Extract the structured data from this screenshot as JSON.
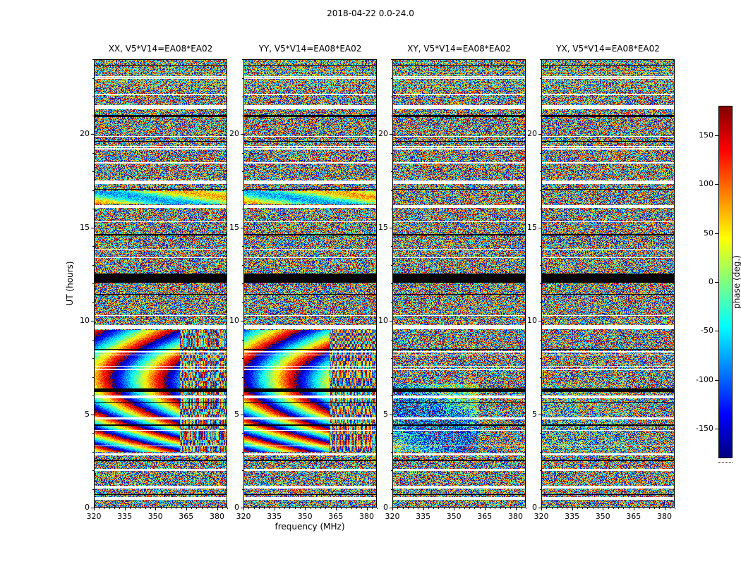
{
  "figure": {
    "title": "2018-04-22 0.0-24.0",
    "xlabel": "frequency (MHz)",
    "ylabel": "UT (hours)",
    "background_color": "#ffffff"
  },
  "chart_data": {
    "type": "heatmap",
    "title": "2018-04-22 0.0-24.0",
    "xlabel": "frequency (MHz)",
    "ylabel": "UT (hours)",
    "colormap": "jet",
    "grid": false,
    "x_range_mhz": [
      320,
      385
    ],
    "x_ticks": [
      320,
      335,
      350,
      365,
      380
    ],
    "y_range_hours": [
      0,
      24
    ],
    "y_ticks": [
      0,
      5,
      10,
      15,
      20
    ],
    "colorbar": {
      "label": "phase (deg.)",
      "min_deg": -180,
      "max_deg": 180,
      "ticks": [
        150,
        100,
        50,
        0,
        -50,
        -100,
        -150
      ],
      "orientation": "vertical",
      "position": "right"
    },
    "panels": [
      {
        "id": "xx",
        "title": "XX, V5*V14=EA08*EA02",
        "kind": "parallel",
        "phase_shift_cycles": 0,
        "description": "Coherent rainbow phase-wrapping fringes between UT 3.0-9.5 below ~362 MHz; scrambled fringes above 362 MHz; smooth green band near UT 16.25-16.95; random phase noise elsewhere"
      },
      {
        "id": "yy",
        "title": "YY, V5*V14=EA08*EA02",
        "kind": "parallel",
        "phase_shift_cycles": 0.35,
        "description": "Same coherent fringe structure as XX with a small phase offset"
      },
      {
        "id": "xy",
        "title": "XY, V5*V14=EA08*EA02",
        "kind": "cross_weak",
        "phase_shift_cycles": 0,
        "description": "Mostly noise-like phase; weak smooth cyan-blue structure between UT 3.0-6.6"
      },
      {
        "id": "yx",
        "title": "YX, V5*V14=EA08*EA02",
        "kind": "cross_noise",
        "phase_shift_cycles": 0,
        "description": "Mostly noise-like phase; very weak coherent structure between UT 3.0-6.6"
      }
    ],
    "features": {
      "coherent_band_ut_parallel": [
        3.0,
        9.5
      ],
      "coherent_band_ut_cross": [
        3.0,
        6.6
      ],
      "green_band_ut": [
        16.25,
        16.95
      ],
      "scrambled_above_mhz": 362,
      "moire_band_ut": [
        22.35,
        24.0
      ],
      "white_gap_rows_ut": [
        [
          0.42,
          0.56
        ],
        [
          1.02,
          1.16
        ],
        [
          1.98,
          2.08
        ],
        [
          2.78,
          2.92
        ],
        [
          4.72,
          4.82
        ],
        [
          5.86,
          5.95
        ],
        [
          7.34,
          7.43
        ],
        [
          8.3,
          8.38
        ],
        [
          9.56,
          9.78
        ],
        [
          13.34,
          13.4
        ],
        [
          16.02,
          16.2
        ],
        [
          17.32,
          17.5
        ],
        [
          18.4,
          18.48
        ],
        [
          19.3,
          19.37
        ],
        [
          21.32,
          21.54
        ],
        [
          22.08,
          22.15
        ],
        [
          23.02,
          23.09
        ]
      ],
      "black_rows_ut": [
        [
          2.5,
          2.55
        ],
        [
          4.38,
          4.43
        ],
        [
          6.18,
          6.36
        ],
        [
          12.05,
          12.52
        ],
        [
          14.58,
          14.63
        ],
        [
          17.02,
          17.06
        ],
        [
          20.9,
          21.0
        ]
      ],
      "note": "Visibility phase (deg.) vs frequency and UT for baseline V5*V14 = EA08*EA02 in four correlation products (XX, YY, XY, YX); most pixels are uniformly random phase noise in [-180, 180] rendered with the jet colormap; horizontal white rows are missing/flagged scans and horizontal black rows are zero-phase scans."
    }
  }
}
